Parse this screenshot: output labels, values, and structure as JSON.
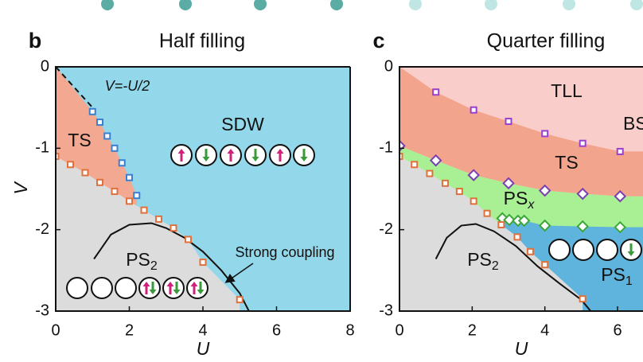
{
  "chart_data": [
    {
      "type": "scatter",
      "panel_label": "b",
      "title": "Half filling",
      "x_label": "U",
      "y_label": "V",
      "xlim": [
        0,
        8
      ],
      "ylim": [
        -3,
        0
      ],
      "xticks": [
        0,
        2,
        4,
        6,
        8
      ],
      "yticks": [
        0,
        -1,
        -2,
        -3
      ],
      "regions": [
        {
          "label": "SDW",
          "color": "#93d8ea"
        },
        {
          "label": "TS",
          "color": "#f2a891"
        },
        {
          "label": "PS",
          "subscript": "2",
          "color": "#dcdcdc"
        }
      ],
      "annotations": [
        "V=-U/2",
        "Strong coupling"
      ],
      "lines": [
        {
          "style": "dashed",
          "x": [
            0,
            1
          ],
          "y": [
            0,
            -0.5
          ]
        },
        {
          "style": "solid",
          "x": [
            1.04,
            1.5,
            2,
            2.6,
            3,
            3.5,
            4,
            4.5,
            5,
            5.25
          ],
          "y": [
            -2.36,
            -2.06,
            -1.94,
            -1.92,
            -1.98,
            -2.1,
            -2.27,
            -2.5,
            -2.78,
            -3
          ]
        }
      ],
      "series": [
        {
          "marker": "square",
          "color": "#e0703c",
          "x": [
            0,
            0.4,
            0.8,
            1.2,
            1.6,
            2,
            2.4,
            2.8,
            3.2,
            3.6,
            4,
            5
          ],
          "y": [
            -1.1,
            -1.2,
            -1.3,
            -1.42,
            -1.53,
            -1.65,
            -1.76,
            -1.87,
            -1.98,
            -2.12,
            -2.4,
            -2.86
          ]
        },
        {
          "marker": "square",
          "color": "#3b7fd0",
          "x": [
            1,
            1.2,
            1.4,
            1.6,
            1.8,
            2,
            2.2
          ],
          "y": [
            -0.55,
            -0.68,
            -0.85,
            -1,
            -1.18,
            -1.36,
            -1.58
          ]
        }
      ]
    },
    {
      "type": "scatter",
      "panel_label": "c",
      "title": "Quarter filling",
      "x_label": "U",
      "y_label": null,
      "xlim": [
        0,
        6.7
      ],
      "ylim": [
        -3,
        0
      ],
      "xticks": [
        0,
        2,
        4,
        6
      ],
      "yticks": [
        0,
        -1,
        -2,
        -3
      ],
      "regions": [
        {
          "label": "TLL",
          "color": "#f8cdca"
        },
        {
          "label": "BS"
        },
        {
          "label": "TS",
          "color": "#f2a48d"
        },
        {
          "label": "PS",
          "subscript": "x",
          "color": "#a9ef93"
        },
        {
          "label": "PS",
          "subscript": "2",
          "color": "#dcdcdc"
        },
        {
          "label": "PS",
          "subscript": "1",
          "color": "#5eb4dc"
        }
      ],
      "lines": [
        {
          "style": "solid",
          "x": [
            1,
            1.3,
            1.7,
            2.1,
            2.6,
            3.2,
            3.8,
            4.4,
            5,
            5.26
          ],
          "y": [
            -2.36,
            -2.1,
            -1.95,
            -1.93,
            -2.02,
            -2.2,
            -2.45,
            -2.66,
            -2.86,
            -3
          ]
        }
      ],
      "series": [
        {
          "marker": "square",
          "color": "#9b3fcf",
          "x": [
            1,
            2.04,
            3,
            4,
            5.04,
            6.07
          ],
          "y": [
            -0.31,
            -0.53,
            -0.67,
            -0.82,
            -0.94,
            -1.04
          ]
        },
        {
          "marker": "diamond",
          "color": "#7a3fb0",
          "x": [
            0,
            1,
            2.04,
            3,
            4,
            5.04,
            6.07
          ],
          "y": [
            -0.97,
            -1.15,
            -1.33,
            -1.43,
            -1.52,
            -1.56,
            -1.59
          ]
        },
        {
          "marker": "diamond",
          "color": "#3aa838",
          "x": [
            2.83,
            3.02,
            3.26,
            3.43,
            4,
            5.04,
            6.07
          ],
          "y": [
            -1.86,
            -1.88,
            -1.89,
            -1.89,
            -1.95,
            -1.96,
            -1.97
          ]
        },
        {
          "marker": "square",
          "color": "#e0703c",
          "x": [
            0,
            0.41,
            0.83,
            1.26,
            1.65,
            2.04,
            2.41,
            2.8,
            3.24,
            3.6,
            4,
            5.04
          ],
          "y": [
            -1.1,
            -1.2,
            -1.31,
            -1.43,
            -1.53,
            -1.65,
            -1.8,
            -1.94,
            -2.09,
            -2.27,
            -2.43,
            -2.85
          ]
        }
      ]
    }
  ]
}
